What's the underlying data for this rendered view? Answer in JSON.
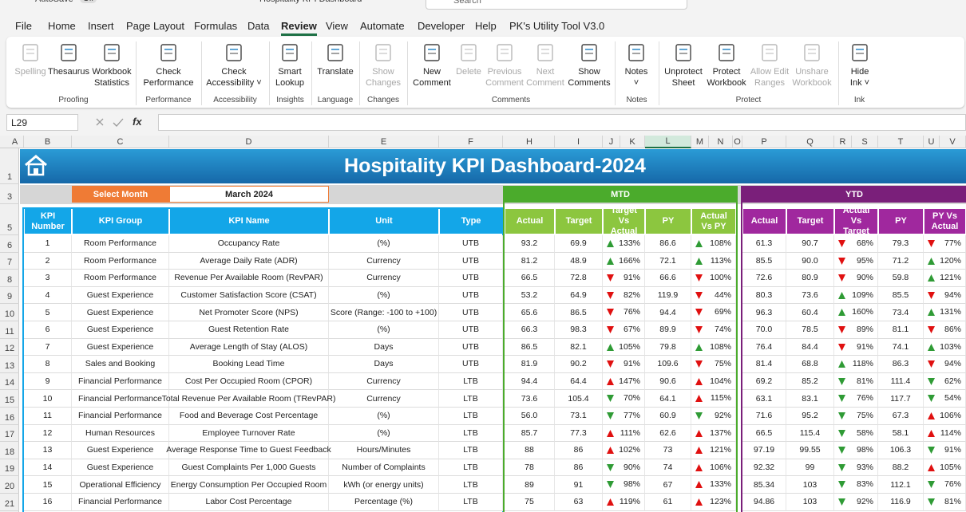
{
  "window": {
    "autosave": "AutoSave",
    "autosave_state": "Off",
    "title": "Hospitality KPI Dashboard",
    "search": "Search"
  },
  "tabs": [
    "File",
    "Home",
    "Insert",
    "Page Layout",
    "Formulas",
    "Data",
    "Review",
    "View",
    "Automate",
    "Developer",
    "Help",
    "PK's Utility Tool V3.0"
  ],
  "active_tab": 6,
  "ribbon": [
    {
      "name": "Proofing",
      "buttons": [
        {
          "lines": [
            "Spelling"
          ],
          "disabled": true
        },
        {
          "lines": [
            "Thesaurus"
          ],
          "disabled": false
        },
        {
          "lines": [
            "Workbook",
            "Statistics"
          ],
          "disabled": false
        }
      ]
    },
    {
      "name": "Performance",
      "buttons": [
        {
          "lines": [
            "Check",
            "Performance"
          ],
          "disabled": false
        }
      ]
    },
    {
      "name": "Accessibility",
      "buttons": [
        {
          "lines": [
            "Check",
            "Accessibility ˅"
          ],
          "disabled": false
        }
      ]
    },
    {
      "name": "Insights",
      "buttons": [
        {
          "lines": [
            "Smart",
            "Lookup"
          ],
          "disabled": false
        }
      ]
    },
    {
      "name": "Language",
      "buttons": [
        {
          "lines": [
            "Translate"
          ],
          "disabled": false
        }
      ]
    },
    {
      "name": "Changes",
      "buttons": [
        {
          "lines": [
            "Show",
            "Changes"
          ],
          "disabled": true
        }
      ]
    },
    {
      "name": "Comments",
      "buttons": [
        {
          "lines": [
            "New",
            "Comment"
          ],
          "disabled": false
        },
        {
          "lines": [
            "Delete"
          ],
          "disabled": true
        },
        {
          "lines": [
            "Previous",
            "Comment"
          ],
          "disabled": true
        },
        {
          "lines": [
            "Next",
            "Comment"
          ],
          "disabled": true
        },
        {
          "lines": [
            "Show",
            "Comments"
          ],
          "disabled": false
        }
      ]
    },
    {
      "name": "Notes",
      "buttons": [
        {
          "lines": [
            "Notes",
            "˅"
          ],
          "disabled": false
        }
      ]
    },
    {
      "name": "Protect",
      "buttons": [
        {
          "lines": [
            "Unprotect",
            "Sheet"
          ],
          "disabled": false
        },
        {
          "lines": [
            "Protect",
            "Workbook"
          ],
          "disabled": false
        },
        {
          "lines": [
            "Allow Edit",
            "Ranges"
          ],
          "disabled": true
        },
        {
          "lines": [
            "Unshare",
            "Workbook"
          ],
          "disabled": true
        }
      ]
    },
    {
      "name": "Ink",
      "buttons": [
        {
          "lines": [
            "Hide",
            "Ink ˅"
          ],
          "disabled": false
        }
      ]
    }
  ],
  "formula_bar": {
    "name_box": "L29",
    "fx": "fx"
  },
  "columns": [
    "A",
    "B",
    "C",
    "D",
    "E",
    "F",
    "H",
    "I",
    "J",
    "K",
    "L",
    "M",
    "N",
    "O",
    "P",
    "Q",
    "R",
    "S",
    "T",
    "U",
    "V"
  ],
  "selected_column": 10,
  "row_numbers": [
    "1",
    "3",
    "5",
    "6",
    "7",
    "8",
    "9",
    "10",
    "11",
    "12",
    "13",
    "14",
    "15",
    "16",
    "17",
    "18",
    "19",
    "20",
    "21"
  ],
  "dashboard": {
    "title": "Hospitality KPI Dashboard-2024",
    "select_month_label": "Select Month",
    "month": "March 2024",
    "mtd": "MTD",
    "ytd": "YTD",
    "headers": [
      "KPI Number",
      "KPI Group",
      "KPI Name",
      "Unit",
      "Type",
      "Actual",
      "Target",
      "Target Vs Actual",
      "PY",
      "Actual Vs PY",
      "Actual",
      "Target",
      "Actual Vs Target",
      "PY",
      "PY Vs Actual"
    ],
    "rows": [
      [
        "1",
        "Room Performance",
        "Occupancy Rate",
        "(%)",
        "UTB",
        "93.2",
        "69.9",
        {
          "t": "133%",
          "a": "up",
          "g": true
        },
        "86.6",
        {
          "t": "108%",
          "a": "up",
          "g": true
        },
        "61.3",
        "90.7",
        {
          "t": "68%",
          "a": "down",
          "g": false
        },
        "79.3",
        {
          "t": "77%",
          "a": "down",
          "g": false
        }
      ],
      [
        "2",
        "Room Performance",
        "Average Daily Rate (ADR)",
        "Currency",
        "UTB",
        "81.2",
        "48.9",
        {
          "t": "166%",
          "a": "up",
          "g": true
        },
        "72.1",
        {
          "t": "113%",
          "a": "up",
          "g": true
        },
        "85.5",
        "90.0",
        {
          "t": "95%",
          "a": "down",
          "g": false
        },
        "71.2",
        {
          "t": "120%",
          "a": "up",
          "g": true
        }
      ],
      [
        "3",
        "Room Performance",
        "Revenue Per Available Room (RevPAR)",
        "Currency",
        "UTB",
        "66.5",
        "72.8",
        {
          "t": "91%",
          "a": "down",
          "g": false
        },
        "66.6",
        {
          "t": "100%",
          "a": "down",
          "g": false
        },
        "72.6",
        "80.9",
        {
          "t": "90%",
          "a": "down",
          "g": false
        },
        "59.8",
        {
          "t": "121%",
          "a": "up",
          "g": true
        }
      ],
      [
        "4",
        "Guest Experience",
        "Customer Satisfaction Score (CSAT)",
        "(%)",
        "UTB",
        "53.2",
        "64.9",
        {
          "t": "82%",
          "a": "down",
          "g": false
        },
        "119.9",
        {
          "t": "44%",
          "a": "down",
          "g": false
        },
        "80.3",
        "73.6",
        {
          "t": "109%",
          "a": "up",
          "g": true
        },
        "85.5",
        {
          "t": "94%",
          "a": "down",
          "g": false
        }
      ],
      [
        "5",
        "Guest Experience",
        "Net Promoter Score (NPS)",
        "Score (Range: -100 to +100)",
        "UTB",
        "65.6",
        "86.5",
        {
          "t": "76%",
          "a": "down",
          "g": false
        },
        "94.4",
        {
          "t": "69%",
          "a": "down",
          "g": false
        },
        "96.3",
        "60.4",
        {
          "t": "160%",
          "a": "up",
          "g": true
        },
        "73.4",
        {
          "t": "131%",
          "a": "up",
          "g": true
        }
      ],
      [
        "6",
        "Guest Experience",
        "Guest Retention Rate",
        "(%)",
        "UTB",
        "66.3",
        "98.3",
        {
          "t": "67%",
          "a": "down",
          "g": false
        },
        "89.9",
        {
          "t": "74%",
          "a": "down",
          "g": false
        },
        "70.0",
        "78.5",
        {
          "t": "89%",
          "a": "down",
          "g": false
        },
        "81.1",
        {
          "t": "86%",
          "a": "down",
          "g": false
        }
      ],
      [
        "7",
        "Guest Experience",
        "Average Length of Stay (ALOS)",
        "Days",
        "UTB",
        "86.5",
        "82.1",
        {
          "t": "105%",
          "a": "up",
          "g": true
        },
        "79.8",
        {
          "t": "108%",
          "a": "up",
          "g": true
        },
        "76.4",
        "84.4",
        {
          "t": "91%",
          "a": "down",
          "g": false
        },
        "74.1",
        {
          "t": "103%",
          "a": "up",
          "g": true
        }
      ],
      [
        "8",
        "Sales and Booking",
        "Booking Lead Time",
        "Days",
        "UTB",
        "81.9",
        "90.2",
        {
          "t": "91%",
          "a": "down",
          "g": false
        },
        "109.6",
        {
          "t": "75%",
          "a": "down",
          "g": false
        },
        "81.4",
        "68.8",
        {
          "t": "118%",
          "a": "up",
          "g": true
        },
        "86.3",
        {
          "t": "94%",
          "a": "down",
          "g": false
        }
      ],
      [
        "9",
        "Financial Performance",
        "Cost Per Occupied Room (CPOR)",
        "Currency",
        "LTB",
        "94.4",
        "64.4",
        {
          "t": "147%",
          "a": "up",
          "g": false
        },
        "90.6",
        {
          "t": "104%",
          "a": "up",
          "g": false
        },
        "69.2",
        "85.2",
        {
          "t": "81%",
          "a": "down",
          "g": true
        },
        "111.4",
        {
          "t": "62%",
          "a": "down",
          "g": true
        }
      ],
      [
        "10",
        "Financial Performance",
        "Total Revenue Per Available Room (TRevPAR)",
        "Currency",
        "LTB",
        "73.6",
        "105.4",
        {
          "t": "70%",
          "a": "down",
          "g": true
        },
        "64.1",
        {
          "t": "115%",
          "a": "up",
          "g": false
        },
        "63.1",
        "83.1",
        {
          "t": "76%",
          "a": "down",
          "g": true
        },
        "117.7",
        {
          "t": "54%",
          "a": "down",
          "g": true
        }
      ],
      [
        "11",
        "Financial Performance",
        "Food and Beverage Cost Percentage",
        "(%)",
        "LTB",
        "56.0",
        "73.1",
        {
          "t": "77%",
          "a": "down",
          "g": true
        },
        "60.9",
        {
          "t": "92%",
          "a": "down",
          "g": true
        },
        "71.6",
        "95.2",
        {
          "t": "75%",
          "a": "down",
          "g": true
        },
        "67.3",
        {
          "t": "106%",
          "a": "up",
          "g": false
        }
      ],
      [
        "12",
        "Human Resources",
        "Employee Turnover Rate",
        "(%)",
        "LTB",
        "85.7",
        "77.3",
        {
          "t": "111%",
          "a": "up",
          "g": false
        },
        "62.6",
        {
          "t": "137%",
          "a": "up",
          "g": false
        },
        "66.5",
        "115.4",
        {
          "t": "58%",
          "a": "down",
          "g": true
        },
        "58.1",
        {
          "t": "114%",
          "a": "up",
          "g": false
        }
      ],
      [
        "13",
        "Guest Experience",
        "Average Response Time to Guest Feedback",
        "Hours/Minutes",
        "LTB",
        "88",
        "86",
        {
          "t": "102%",
          "a": "up",
          "g": false
        },
        "73",
        {
          "t": "121%",
          "a": "up",
          "g": false
        },
        "97.19",
        "99.55",
        {
          "t": "98%",
          "a": "down",
          "g": true
        },
        "106.3",
        {
          "t": "91%",
          "a": "down",
          "g": true
        }
      ],
      [
        "14",
        "Guest Experience",
        "Guest Complaints Per 1,000 Guests",
        "Number of Complaints",
        "LTB",
        "78",
        "86",
        {
          "t": "90%",
          "a": "down",
          "g": true
        },
        "74",
        {
          "t": "106%",
          "a": "up",
          "g": false
        },
        "92.32",
        "99",
        {
          "t": "93%",
          "a": "down",
          "g": true
        },
        "88.2",
        {
          "t": "105%",
          "a": "up",
          "g": false
        }
      ],
      [
        "15",
        "Operational Efficiency",
        "Energy Consumption Per Occupied Room",
        "kWh (or energy units)",
        "LTB",
        "89",
        "91",
        {
          "t": "98%",
          "a": "down",
          "g": true
        },
        "67",
        {
          "t": "133%",
          "a": "up",
          "g": false
        },
        "85.34",
        "103",
        {
          "t": "83%",
          "a": "down",
          "g": true
        },
        "112.1",
        {
          "t": "76%",
          "a": "down",
          "g": true
        }
      ],
      [
        "16",
        "Financial Performance",
        "Labor Cost Percentage",
        "Percentage (%)",
        "LTB",
        "75",
        "63",
        {
          "t": "119%",
          "a": "up",
          "g": false
        },
        "61",
        {
          "t": "123%",
          "a": "up",
          "g": false
        },
        "94.86",
        "103",
        {
          "t": "92%",
          "a": "down",
          "g": true
        },
        "116.9",
        {
          "t": "81%",
          "a": "down",
          "g": true
        }
      ]
    ]
  }
}
